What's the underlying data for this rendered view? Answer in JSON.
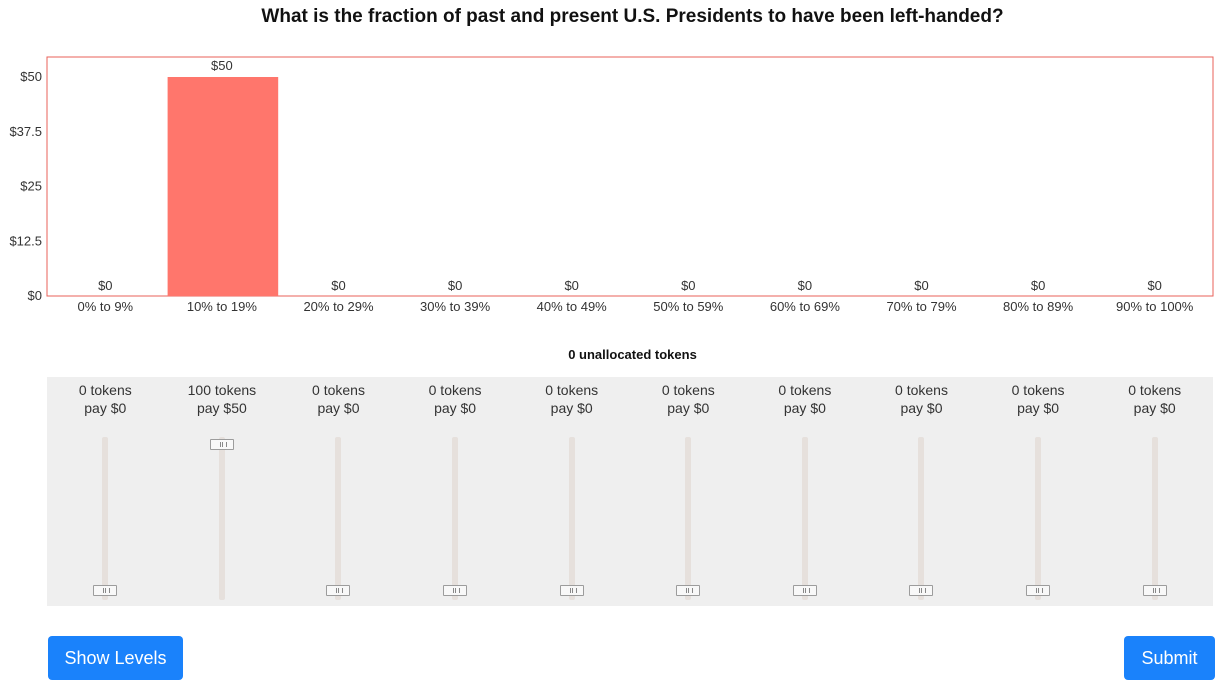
{
  "question": "What is the fraction of past and present U.S. Presidents to have been left-handed?",
  "unallocated_text": "0 unallocated tokens",
  "bins": [
    {
      "range": "0% to 9%",
      "tokens": "0 tokens",
      "pay": "pay $0",
      "bar_label": "$0",
      "value": 0
    },
    {
      "range": "10% to 19%",
      "tokens": "100 tokens",
      "pay": "pay $50",
      "bar_label": "$50",
      "value": 50
    },
    {
      "range": "20% to 29%",
      "tokens": "0 tokens",
      "pay": "pay $0",
      "bar_label": "$0",
      "value": 0
    },
    {
      "range": "30% to 39%",
      "tokens": "0 tokens",
      "pay": "pay $0",
      "bar_label": "$0",
      "value": 0
    },
    {
      "range": "40% to 49%",
      "tokens": "0 tokens",
      "pay": "pay $0",
      "bar_label": "$0",
      "value": 0
    },
    {
      "range": "50% to 59%",
      "tokens": "0 tokens",
      "pay": "pay $0",
      "bar_label": "$0",
      "value": 0
    },
    {
      "range": "60% to 69%",
      "tokens": "0 tokens",
      "pay": "pay $0",
      "bar_label": "$0",
      "value": 0
    },
    {
      "range": "70% to 79%",
      "tokens": "0 tokens",
      "pay": "pay $0",
      "bar_label": "$0",
      "value": 0
    },
    {
      "range": "80% to 89%",
      "tokens": "0 tokens",
      "pay": "pay $0",
      "bar_label": "$0",
      "value": 0
    },
    {
      "range": "90% to 100%",
      "tokens": "0 tokens",
      "pay": "pay $0",
      "bar_label": "$0",
      "value": 0
    }
  ],
  "slider_levels": [
    0,
    1,
    0,
    0,
    0,
    0,
    0,
    0,
    0,
    0
  ],
  "buttons": {
    "show_levels": "Show Levels",
    "submit": "Submit"
  },
  "colors": {
    "bar": "#ff766c",
    "axis": "#e8605a",
    "button": "#1a82fb",
    "panel": "#efefef"
  },
  "chart_data": {
    "type": "bar",
    "title": "",
    "categories": [
      "0% to 9%",
      "10% to 19%",
      "20% to 29%",
      "30% to 39%",
      "40% to 49%",
      "50% to 59%",
      "60% to 69%",
      "70% to 79%",
      "80% to 89%",
      "90% to 100%"
    ],
    "values": [
      0,
      50,
      0,
      0,
      0,
      0,
      0,
      0,
      0,
      0
    ],
    "data_labels": [
      "$0",
      "$50",
      "$0",
      "$0",
      "$0",
      "$0",
      "$0",
      "$0",
      "$0",
      "$0"
    ],
    "yticks": [
      "$0",
      "$12.5",
      "$25",
      "$37.5",
      "$50"
    ],
    "ytick_values": [
      0,
      12.5,
      25,
      37.5,
      50
    ],
    "ylim": [
      0,
      50
    ],
    "xlabel": "",
    "ylabel": "",
    "grid": false
  }
}
